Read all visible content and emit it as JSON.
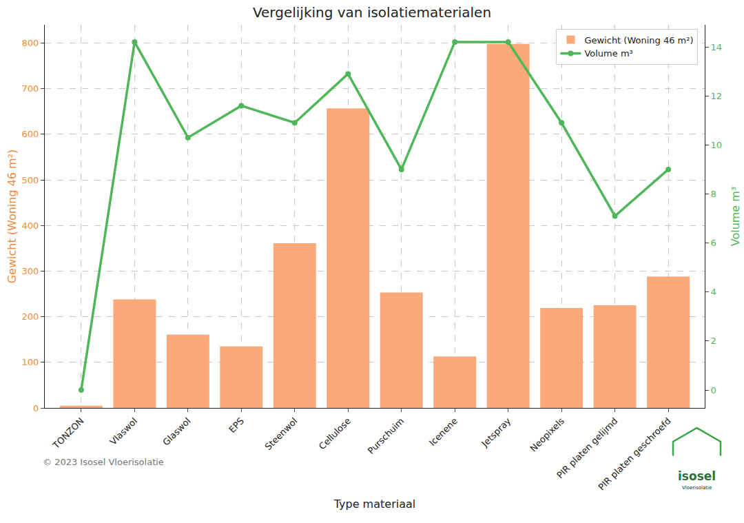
{
  "chart_data": {
    "type": "bar",
    "title": "Vergelijking van isolatiematerialen",
    "x_label": "Type materiaal",
    "y_label": "Gewicht (Woning 46 m²)",
    "y2_label": "Volume m³",
    "categories": [
      "TONZON",
      "Vlaswol",
      "Glaswol",
      "EPS",
      "Steenwol",
      "Cellulose",
      "Purschuim",
      "Icenene",
      "Jetspray",
      "Neopixels",
      "PIR platen gelijmd",
      "PIR platen geschroefd"
    ],
    "series": [
      {
        "name": "Gewicht (Woning 46 m²)",
        "type": "bar",
        "color": "#fba97a",
        "values": [
          5,
          238,
          161,
          135,
          361,
          657,
          253,
          113,
          798,
          219,
          225,
          288
        ]
      },
      {
        "name": "Volume m³",
        "type": "line",
        "axis": "y2",
        "color": "#4fb75a",
        "marker": "circle",
        "values": [
          0,
          14.2,
          10.3,
          11.6,
          10.9,
          12.9,
          9.0,
          14.2,
          14.2,
          10.9,
          7.1,
          9.0
        ]
      }
    ],
    "ylim": [
      0,
      840
    ],
    "yticks": [
      0,
      100,
      200,
      300,
      400,
      500,
      600,
      700,
      800
    ],
    "y2lim": [
      -0.73,
      14.9
    ],
    "y2ticks": [
      0,
      2,
      4,
      6,
      8,
      10,
      12,
      14
    ],
    "grid": true,
    "legend": "upper right",
    "annotations": [
      "© 2023 Isosel Vloerisolatie",
      "isosel",
      "Vloerisolatie"
    ]
  }
}
